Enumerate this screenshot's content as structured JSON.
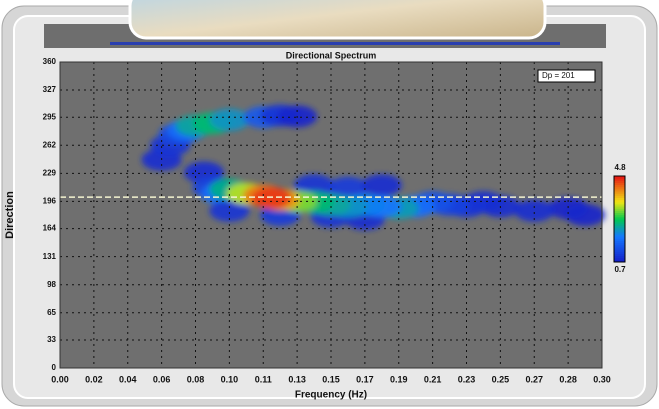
{
  "chart_data": {
    "type": "heatmap",
    "title": "Directional Spectrum",
    "x_label": "Frequency (Hz)",
    "y_label": "Direction",
    "xlim": [
      0,
      0.3
    ],
    "xticks": [
      {
        "value": 0,
        "label": "0.00"
      },
      {
        "value": 0.02,
        "label": "0.02"
      },
      {
        "value": 0.04,
        "label": "0.04"
      },
      {
        "value": 0.06,
        "label": "0.06"
      },
      {
        "value": 0.08,
        "label": "0.08"
      },
      {
        "value": 0.1,
        "label": "0.10"
      },
      {
        "value": 0.11,
        "label": "0.11"
      },
      {
        "value": 0.13,
        "label": "0.13"
      },
      {
        "value": 0.15,
        "label": "0.15"
      },
      {
        "value": 0.17,
        "label": "0.17"
      },
      {
        "value": 0.19,
        "label": "0.19"
      },
      {
        "value": 0.21,
        "label": "0.21"
      },
      {
        "value": 0.23,
        "label": "0.23"
      },
      {
        "value": 0.25,
        "label": "0.25"
      },
      {
        "value": 0.27,
        "label": "0.27"
      },
      {
        "value": 0.28,
        "label": "0.28"
      },
      {
        "value": 0.3,
        "label": "0.30"
      }
    ],
    "ylim": [
      0,
      360
    ],
    "yticks": [
      0,
      33,
      65,
      98,
      131,
      164,
      196,
      229,
      262,
      295,
      327,
      360
    ],
    "clim": [
      0.7,
      4.8
    ],
    "grid": true,
    "dp": 201,
    "dp_label": "Dp = 201",
    "x": [
      0.06,
      0.065,
      0.07,
      0.075,
      0.08,
      0.09,
      0.1,
      0.11,
      0.12,
      0.13,
      0.085,
      0.09,
      0.095,
      0.14,
      0.16,
      0.18,
      0.1,
      0.12,
      0.15,
      0.17,
      0.29,
      0.28,
      0.27,
      0.25,
      0.24,
      0.23,
      0.22,
      0.21,
      0.2,
      0.19,
      0.18,
      0.17,
      0.16,
      0.15,
      0.14,
      0.13,
      0.1,
      0.105,
      0.12,
      0.11,
      0.115
    ],
    "y": [
      245,
      262,
      275,
      280,
      285,
      288,
      292,
      295,
      297,
      296,
      230,
      212,
      205,
      215,
      212,
      215,
      185,
      180,
      178,
      175,
      180,
      188,
      185,
      190,
      195,
      190,
      192,
      195,
      190,
      188,
      190,
      192,
      190,
      192,
      195,
      196,
      210,
      205,
      198,
      203,
      200
    ],
    "values": [
      0.9,
      1.0,
      1.3,
      1.8,
      2.4,
      2.6,
      2.2,
      1.5,
      1.0,
      0.8,
      0.9,
      1.2,
      1.8,
      1.0,
      1.1,
      0.9,
      1.0,
      1.1,
      1.0,
      0.9,
      0.8,
      0.8,
      0.9,
      0.9,
      0.9,
      1.0,
      1.2,
      1.4,
      1.8,
      2.3,
      1.9,
      2.0,
      2.2,
      2.4,
      2.6,
      3.2,
      2.5,
      3.4,
      4.0,
      4.2,
      4.6
    ]
  }
}
